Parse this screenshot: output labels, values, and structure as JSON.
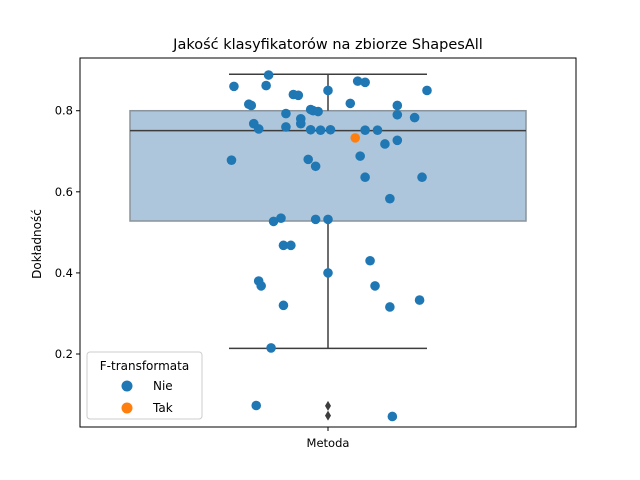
{
  "chart_data": {
    "type": "box+strip",
    "title": "Jakość klasyfikatorów na zbiorze ShapesAll",
    "xlabel": "",
    "ylabel": "Dokładność",
    "categories": [
      "Metoda"
    ],
    "ylim": [
      0.02,
      0.93
    ],
    "yticks": [
      0.2,
      0.4,
      0.6,
      0.8
    ],
    "grid": false,
    "box": {
      "q1": 0.528,
      "median": 0.751,
      "q3": 0.8,
      "whisker_low": 0.214,
      "whisker_high": 0.89,
      "outliers": [
        0.072,
        0.048
      ],
      "color": "#adc6dc"
    },
    "legend": {
      "title": "F-transformata",
      "placement": "lower-left",
      "entries": [
        {
          "label": "Nie",
          "color": "#1f77b4"
        },
        {
          "label": "Tak",
          "color": "#ff7f0e"
        }
      ]
    },
    "series": [
      {
        "name": "Nie",
        "color": "#1f77b4",
        "points": [
          {
            "jitter": -0.12,
            "y": 0.888
          },
          {
            "jitter": 0.06,
            "y": 0.873
          },
          {
            "jitter": 0.075,
            "y": 0.87
          },
          {
            "jitter": -0.19,
            "y": 0.86
          },
          {
            "jitter": -0.125,
            "y": 0.862
          },
          {
            "jitter": 0.0,
            "y": 0.85
          },
          {
            "jitter": 0.2,
            "y": 0.85
          },
          {
            "jitter": -0.07,
            "y": 0.84
          },
          {
            "jitter": -0.06,
            "y": 0.838
          },
          {
            "jitter": -0.16,
            "y": 0.816
          },
          {
            "jitter": -0.155,
            "y": 0.813
          },
          {
            "jitter": 0.045,
            "y": 0.818
          },
          {
            "jitter": 0.14,
            "y": 0.813
          },
          {
            "jitter": -0.035,
            "y": 0.803
          },
          {
            "jitter": -0.03,
            "y": 0.8
          },
          {
            "jitter": -0.085,
            "y": 0.793
          },
          {
            "jitter": -0.02,
            "y": 0.798
          },
          {
            "jitter": 0.14,
            "y": 0.79
          },
          {
            "jitter": 0.175,
            "y": 0.783
          },
          {
            "jitter": -0.055,
            "y": 0.78
          },
          {
            "jitter": -0.15,
            "y": 0.768
          },
          {
            "jitter": -0.055,
            "y": 0.768
          },
          {
            "jitter": -0.085,
            "y": 0.76
          },
          {
            "jitter": -0.14,
            "y": 0.755
          },
          {
            "jitter": -0.035,
            "y": 0.753
          },
          {
            "jitter": -0.015,
            "y": 0.752
          },
          {
            "jitter": 0.005,
            "y": 0.753
          },
          {
            "jitter": 0.075,
            "y": 0.752
          },
          {
            "jitter": 0.1,
            "y": 0.752
          },
          {
            "jitter": 0.14,
            "y": 0.727
          },
          {
            "jitter": 0.115,
            "y": 0.718
          },
          {
            "jitter": 0.065,
            "y": 0.688
          },
          {
            "jitter": -0.195,
            "y": 0.678
          },
          {
            "jitter": -0.04,
            "y": 0.68
          },
          {
            "jitter": -0.025,
            "y": 0.663
          },
          {
            "jitter": 0.075,
            "y": 0.636
          },
          {
            "jitter": 0.19,
            "y": 0.636
          },
          {
            "jitter": 0.125,
            "y": 0.583
          },
          {
            "jitter": -0.095,
            "y": 0.535
          },
          {
            "jitter": -0.11,
            "y": 0.527
          },
          {
            "jitter": -0.025,
            "y": 0.532
          },
          {
            "jitter": 0.0,
            "y": 0.532
          },
          {
            "jitter": -0.09,
            "y": 0.468
          },
          {
            "jitter": -0.075,
            "y": 0.468
          },
          {
            "jitter": 0.085,
            "y": 0.43
          },
          {
            "jitter": 0.0,
            "y": 0.4
          },
          {
            "jitter": -0.14,
            "y": 0.38
          },
          {
            "jitter": -0.135,
            "y": 0.368
          },
          {
            "jitter": 0.095,
            "y": 0.368
          },
          {
            "jitter": 0.185,
            "y": 0.333
          },
          {
            "jitter": -0.09,
            "y": 0.32
          },
          {
            "jitter": 0.125,
            "y": 0.316
          },
          {
            "jitter": -0.115,
            "y": 0.215
          },
          {
            "jitter": -0.145,
            "y": 0.073
          },
          {
            "jitter": 0.13,
            "y": 0.046
          }
        ]
      },
      {
        "name": "Tak",
        "color": "#ff7f0e",
        "points": [
          {
            "jitter": 0.055,
            "y": 0.733
          }
        ]
      }
    ]
  }
}
